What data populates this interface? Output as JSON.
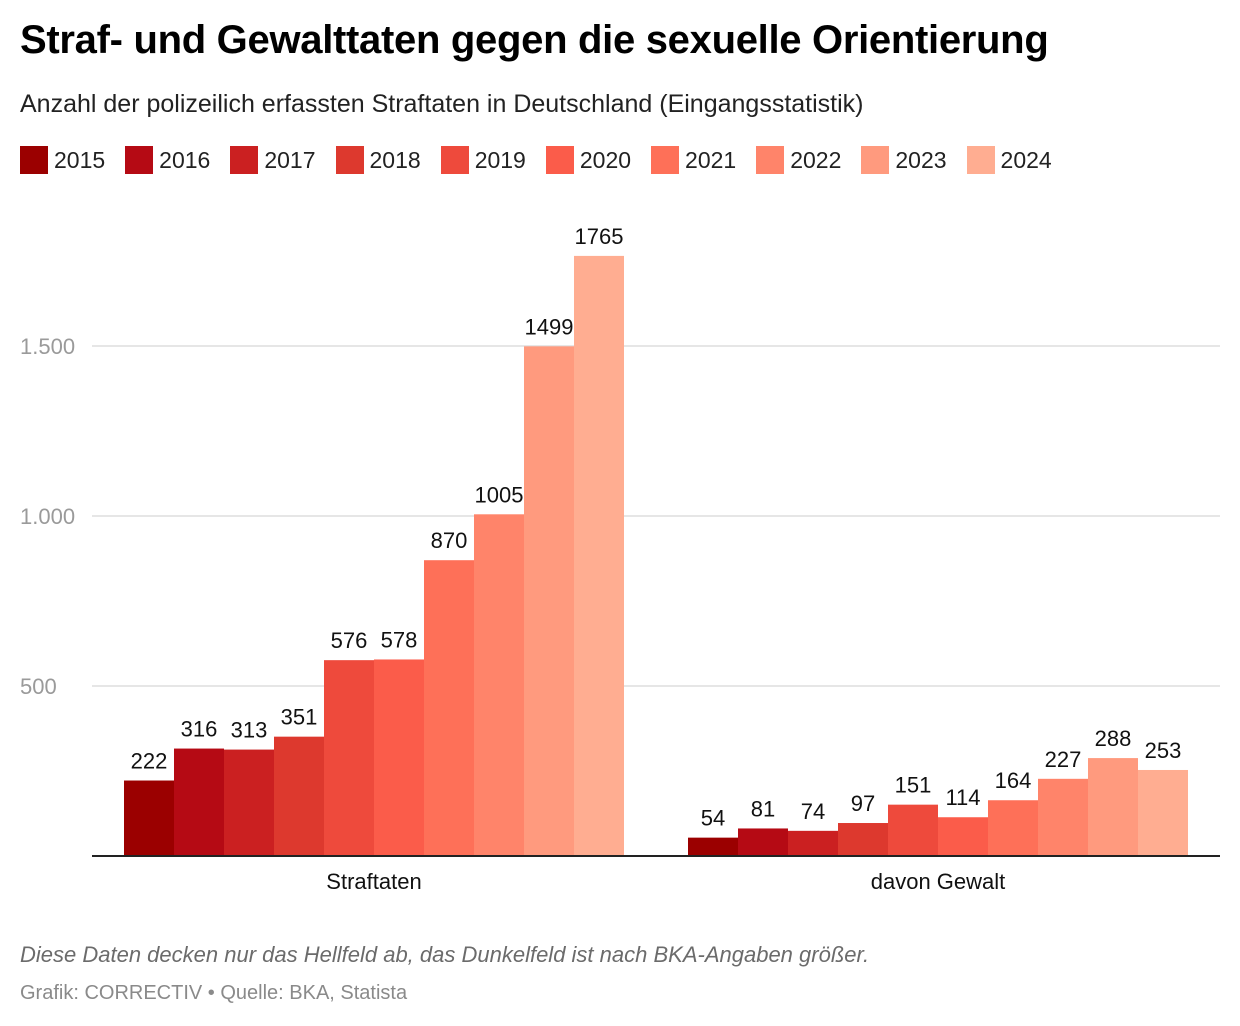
{
  "header": {
    "title": "Straf- und Gewalttaten gegen die sexuelle Orientierung",
    "subtitle": "Anzahl der polizeilich erfassten Straftaten in Deutschland (Eingangsstatistik)"
  },
  "footer": {
    "note": "Diese Daten decken nur das Hellfeld ab, das Dunkelfeld ist nach BKA-Angaben größer.",
    "credit": "Grafik: CORRECTIV • Quelle: BKA, Statista"
  },
  "chart_data": {
    "type": "bar",
    "title": "Straf- und Gewalttaten gegen die sexuelle Orientierung",
    "subtitle": "Anzahl der polizeilich erfassten Straftaten in Deutschland (Eingangsstatistik)",
    "categories": [
      "Straftaten",
      "davon Gewalt"
    ],
    "series": [
      {
        "name": "2015",
        "color": "#9b0000",
        "values": [
          222,
          54
        ]
      },
      {
        "name": "2016",
        "color": "#b50a14",
        "values": [
          316,
          81
        ]
      },
      {
        "name": "2017",
        "color": "#cb2021",
        "values": [
          313,
          74
        ]
      },
      {
        "name": "2018",
        "color": "#dd392e",
        "values": [
          351,
          97
        ]
      },
      {
        "name": "2019",
        "color": "#ee4a3c",
        "values": [
          576,
          151
        ]
      },
      {
        "name": "2020",
        "color": "#fb5c4a",
        "values": [
          578,
          114
        ]
      },
      {
        "name": "2021",
        "color": "#fe7058",
        "values": [
          870,
          164
        ]
      },
      {
        "name": "2022",
        "color": "#ff846a",
        "values": [
          1005,
          227
        ]
      },
      {
        "name": "2023",
        "color": "#ff9a7e",
        "values": [
          1499,
          288
        ]
      },
      {
        "name": "2024",
        "color": "#ffad91",
        "values": [
          1765,
          253
        ]
      }
    ],
    "yticks": [
      {
        "value": 500,
        "label": "500"
      },
      {
        "value": 1000,
        "label": "1.000"
      },
      {
        "value": 1500,
        "label": "1.500"
      }
    ],
    "ylim": [
      0,
      1765
    ],
    "grid": true,
    "legend_position": "top-left",
    "data_labels": true,
    "xlabel": "",
    "ylabel": ""
  }
}
